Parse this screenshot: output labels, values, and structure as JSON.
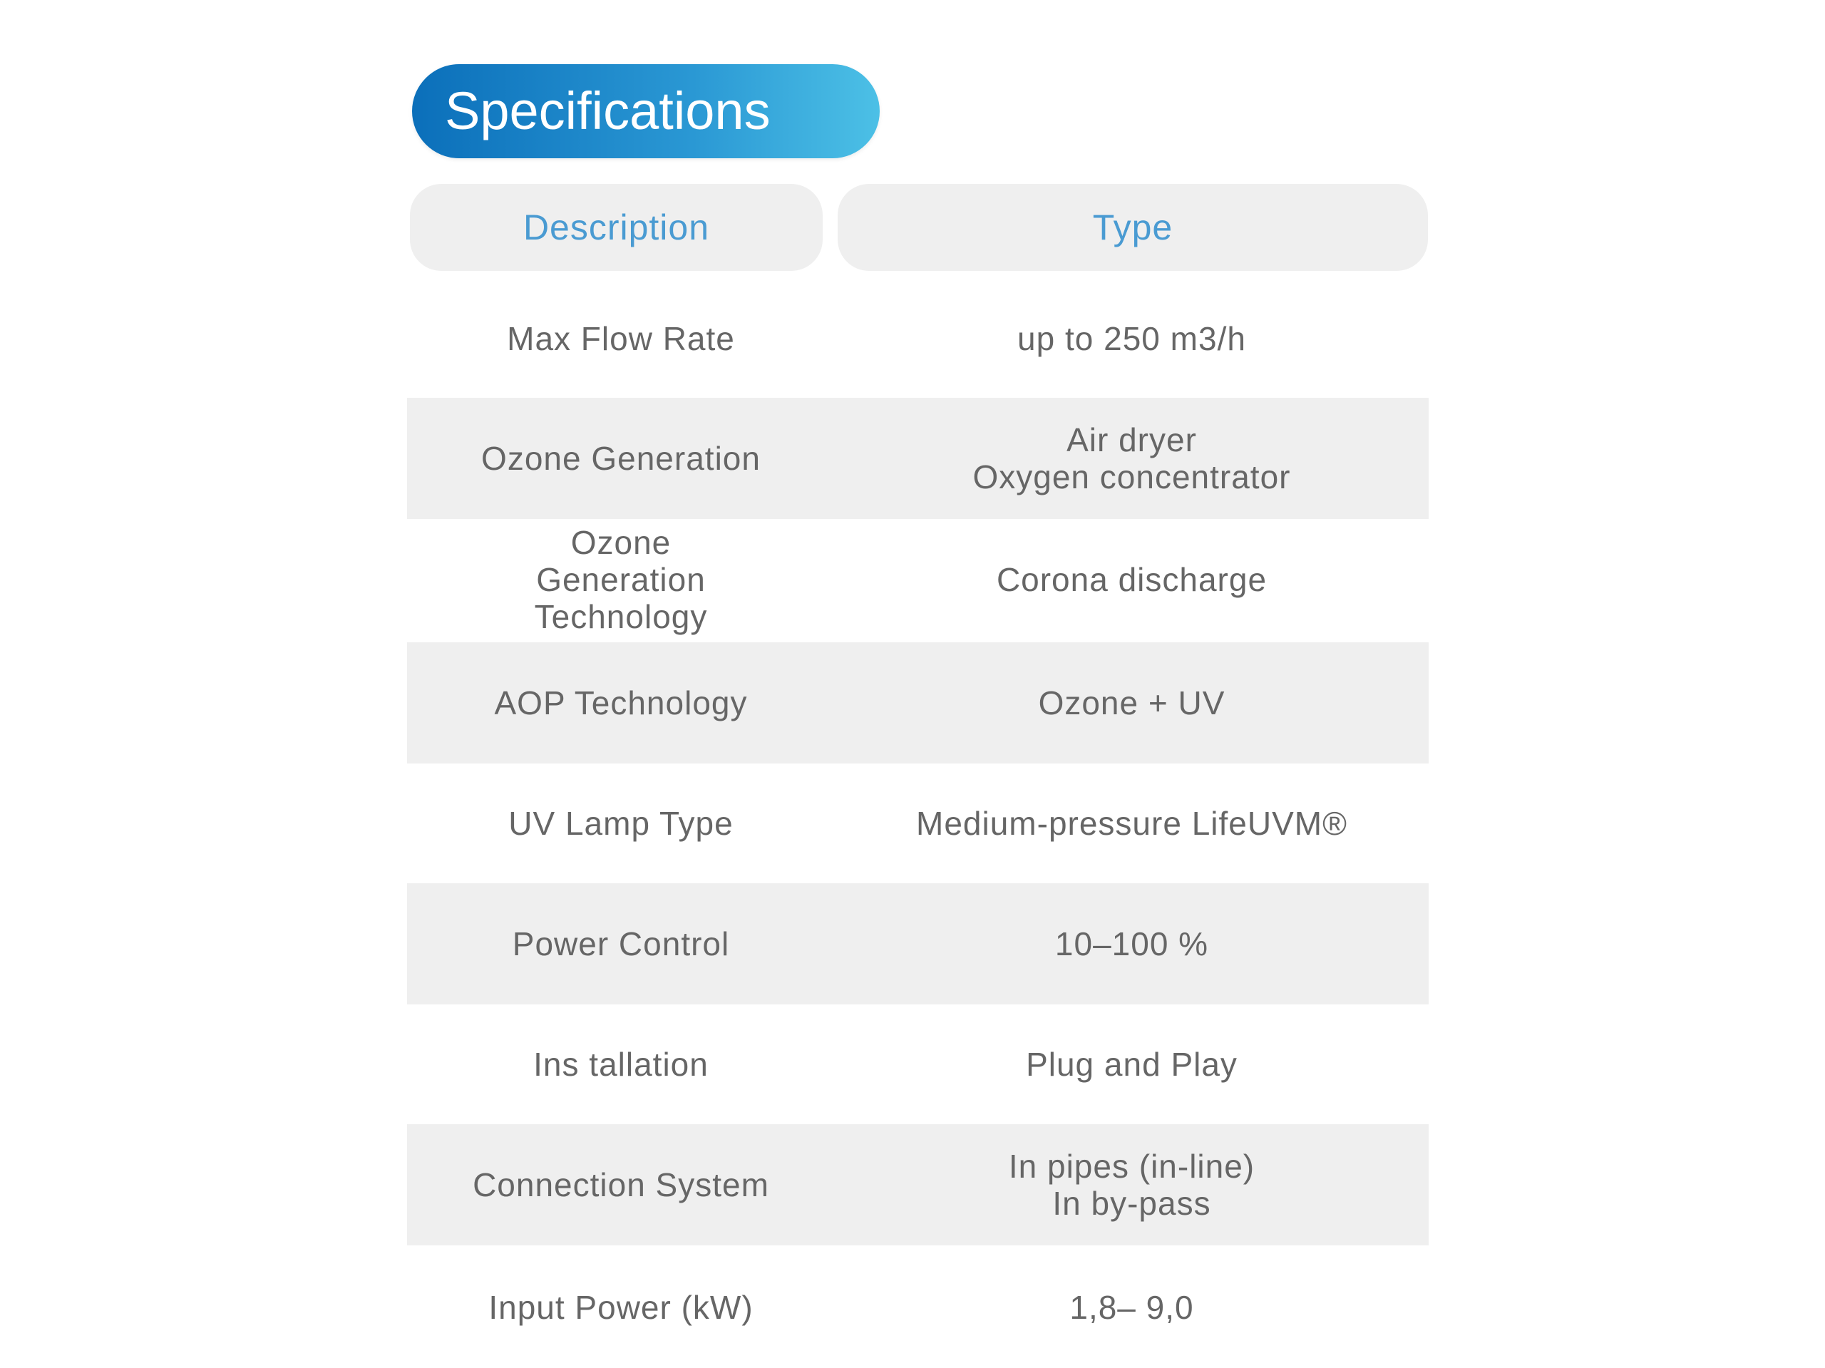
{
  "title": "Specifications",
  "columns": [
    "Description",
    "Type"
  ],
  "colors": {
    "accent_start": "#0b6fba",
    "accent_end": "#4cc0e6",
    "header_text": "#4a9bd2",
    "row_shade": "#efefef",
    "body_text": "#666666"
  },
  "rows": [
    {
      "description": "Max Flow Rate",
      "type": "up to 250 m3/h"
    },
    {
      "description": "Ozone Generation",
      "type": "Air dryer\nOxygen concentrator"
    },
    {
      "description": "Ozone Generation Technology",
      "type": "Corona discharge"
    },
    {
      "description": "AOP Technology",
      "type": "Ozone + UV"
    },
    {
      "description": "UV Lamp Type",
      "type": "Medium-pressure LifeUVM®"
    },
    {
      "description": "Power Control",
      "type": "10–100 %"
    },
    {
      "description": "Ins tallation",
      "type": "Plug and Play"
    },
    {
      "description": "Connection System",
      "type": "In pipes (in-line)\nIn by-pass"
    },
    {
      "description": "Input Power (kW)",
      "type": "1,8– 9,0"
    }
  ]
}
